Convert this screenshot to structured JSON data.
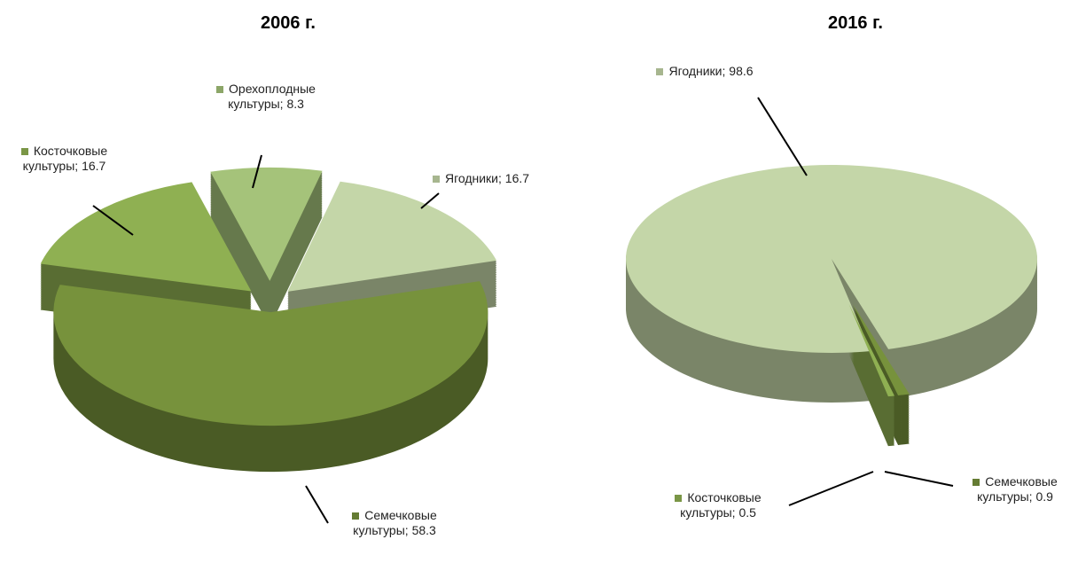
{
  "chart_data": [
    {
      "type": "pie3d",
      "title": "2006 г.",
      "label_separator": ";",
      "categories": [
        "Ягодники",
        "Семечковые культуры",
        "Косточковые культуры",
        "Орехоплодные культуры"
      ],
      "values": [
        16.7,
        58.3,
        16.7,
        8.3
      ],
      "colors": [
        "#c4d6a8",
        "#77923c",
        "#8fb052",
        "#a5c37a"
      ]
    },
    {
      "type": "pie3d",
      "title": "2016 г.",
      "label_separator": ";",
      "categories": [
        "Ягодники",
        "Семечковые культуры",
        "Косточковые культуры"
      ],
      "values": [
        98.6,
        0.9,
        0.5
      ],
      "colors": [
        "#c4d6a8",
        "#77923c",
        "#8fb052"
      ]
    }
  ]
}
